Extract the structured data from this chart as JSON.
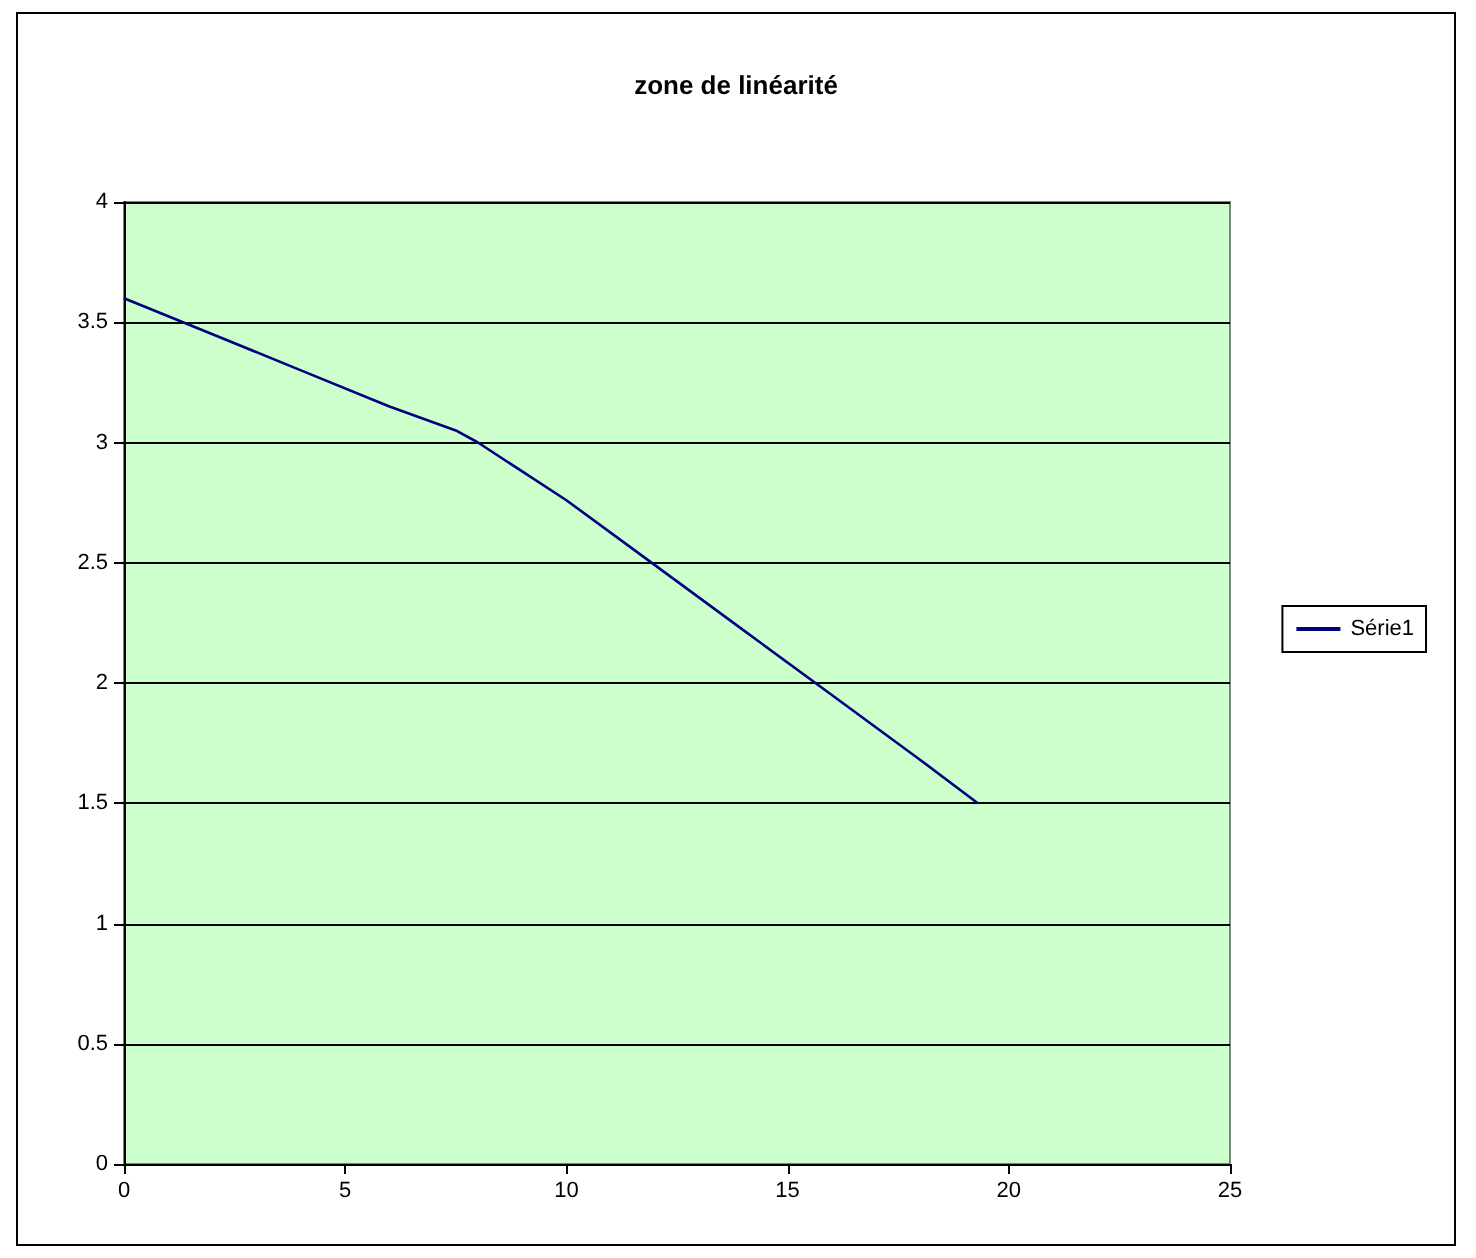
{
  "chart_data": {
    "type": "line",
    "title": "zone de linéarité",
    "x": [
      0,
      2,
      4,
      6,
      7.5,
      8,
      10,
      12,
      14,
      16,
      18,
      19.3
    ],
    "series": [
      {
        "name": "Série1",
        "color": "#000080",
        "values": [
          3.6,
          3.45,
          3.3,
          3.15,
          3.05,
          3.0,
          2.76,
          2.49,
          2.22,
          1.95,
          1.68,
          1.5
        ]
      }
    ],
    "xlim": [
      0,
      25
    ],
    "xticks": [
      0,
      5,
      10,
      15,
      20,
      25
    ],
    "ylim": [
      0,
      4
    ],
    "yticks": [
      0,
      0.5,
      1,
      1.5,
      2,
      2.5,
      3,
      3.5,
      4
    ],
    "grid": "y",
    "legend": "right",
    "marker": "none",
    "line_style": "solid"
  }
}
